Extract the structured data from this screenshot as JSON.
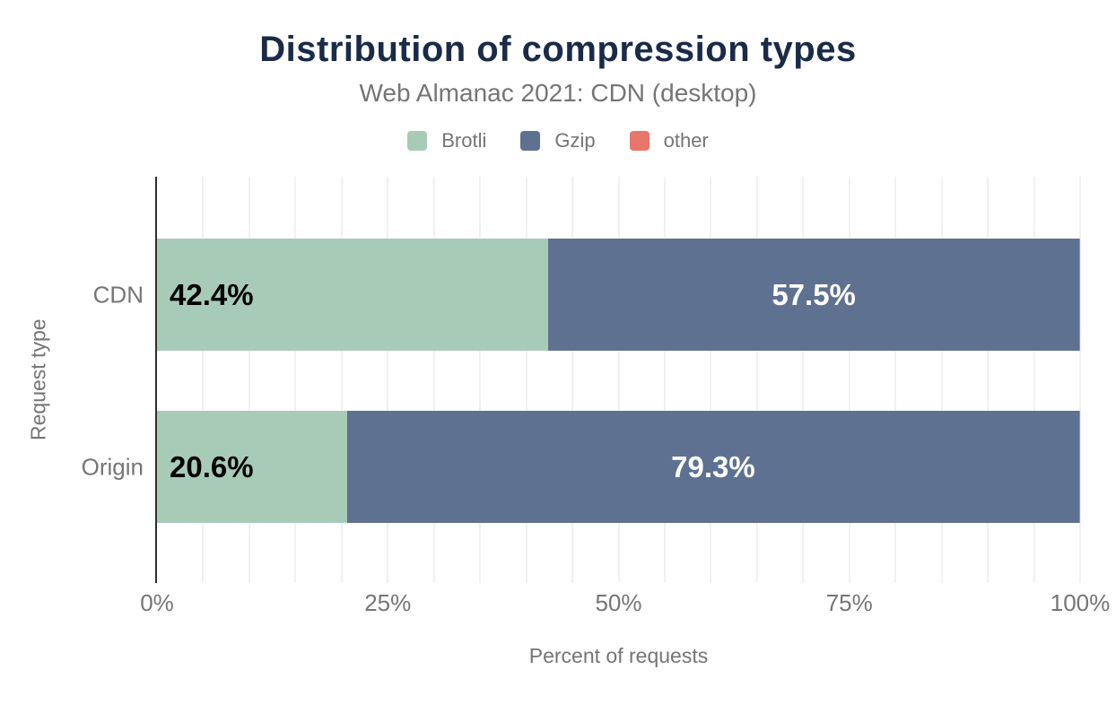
{
  "chart_data": {
    "type": "bar",
    "orientation": "horizontal",
    "stacked": true,
    "title": "Distribution of compression types",
    "subtitle": "Web Almanac 2021: CDN (desktop)",
    "xlabel": "Percent of requests",
    "ylabel": "Request type",
    "categories": [
      "CDN",
      "Origin"
    ],
    "series": [
      {
        "name": "Brotli",
        "color": "#a8cbb8",
        "values": [
          42.4,
          20.6
        ],
        "data_labels": [
          "42.4%",
          "20.6%"
        ],
        "label_style": "inside-start-black"
      },
      {
        "name": "Gzip",
        "color": "#5e7190",
        "values": [
          57.5,
          79.3
        ],
        "data_labels": [
          "57.5%",
          "79.3%"
        ],
        "label_style": "inside-center-white"
      },
      {
        "name": "other",
        "color": "#e8766b",
        "values": [
          0.1,
          0.1
        ],
        "data_labels": [
          "",
          ""
        ],
        "label_style": "none"
      }
    ],
    "xlim": [
      0,
      100
    ],
    "xtick_values": [
      0,
      25,
      50,
      75,
      100
    ],
    "xtick_labels": [
      "0%",
      "25%",
      "50%",
      "75%",
      "100%"
    ],
    "grid": {
      "vertical": true,
      "interval_percent": 5
    },
    "legend_position": "top"
  },
  "colors": {
    "title": "#1a2b49",
    "muted_text": "#757575",
    "axis_line": "#2e2e2e",
    "gridline": "#f1f1f1",
    "label_on_light": "#000000",
    "label_on_dark": "#ffffff"
  }
}
